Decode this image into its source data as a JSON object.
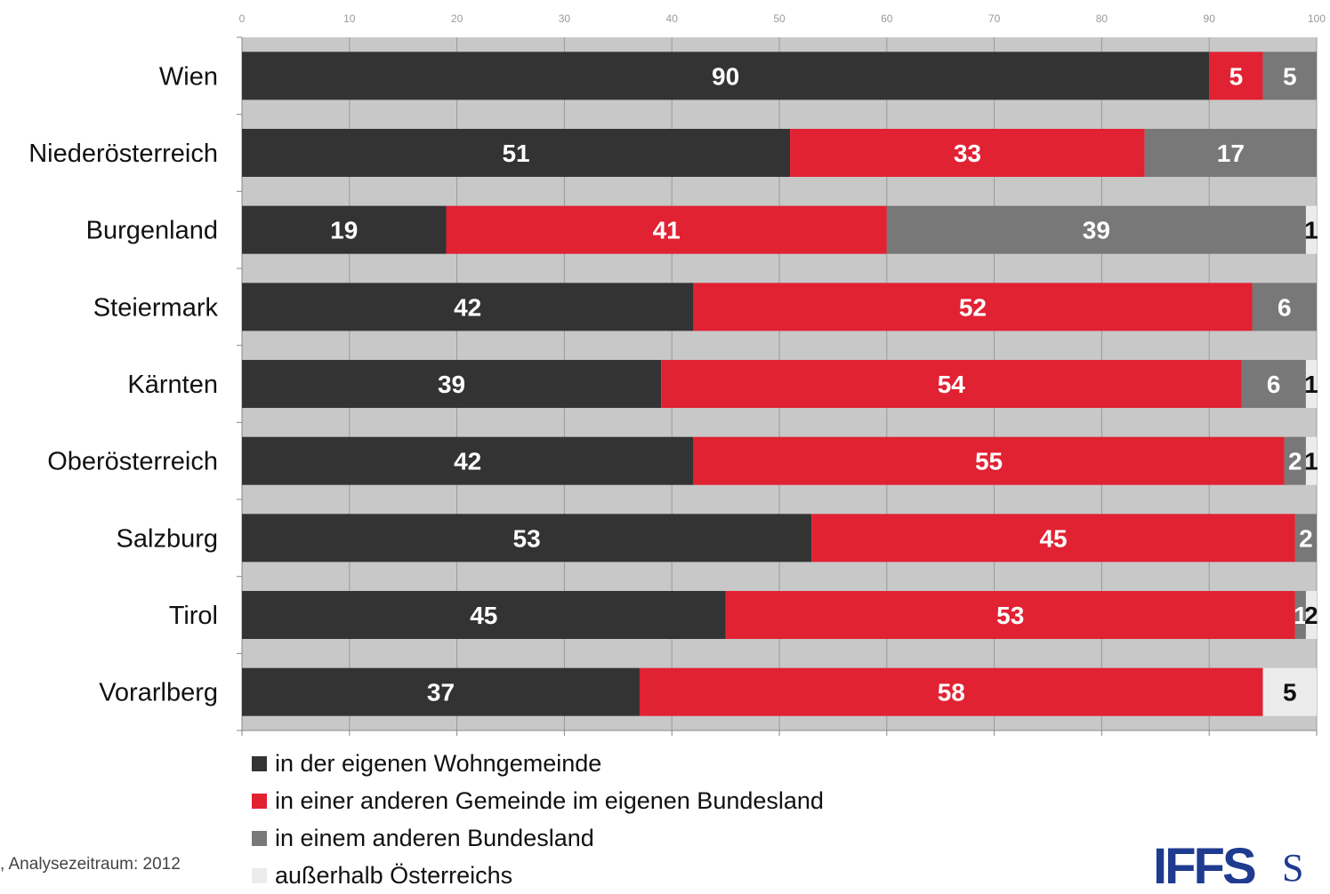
{
  "chart_data": {
    "type": "bar",
    "orientation": "horizontal",
    "stacked": true,
    "categories": [
      "Wien",
      "Niederösterreich",
      "Burgenland",
      "Steiermark",
      "Kärnten",
      "Oberösterreich",
      "Salzburg",
      "Tirol",
      "Vorarlberg"
    ],
    "series": [
      {
        "name": "in der eigenen Wohngemeinde",
        "color": "#333333",
        "values": [
          90,
          51,
          19,
          42,
          39,
          42,
          53,
          45,
          37
        ]
      },
      {
        "name": "in einer anderen Gemeinde im eigenen Bundesland",
        "color": "#e02233",
        "values": [
          5,
          33,
          41,
          52,
          54,
          55,
          45,
          53,
          58
        ]
      },
      {
        "name": "in einem anderen Bundesland",
        "color": "#787878",
        "values": [
          5,
          17,
          39,
          6,
          6,
          2,
          2,
          1,
          0
        ]
      },
      {
        "name": "außerhalb Österreichs",
        "color": "#ececec",
        "values": [
          0,
          0,
          1,
          0,
          1,
          1,
          0,
          2,
          5
        ]
      }
    ],
    "xlim": [
      0,
      100
    ],
    "xticks": [
      0,
      10,
      20,
      30,
      40,
      50,
      60,
      70,
      80,
      90,
      100
    ],
    "grid": true,
    "legend_position": "bottom"
  },
  "source_text": ", Analysezeitraum: 2012",
  "logo_text": "IFFS",
  "logo_text_2": "S"
}
